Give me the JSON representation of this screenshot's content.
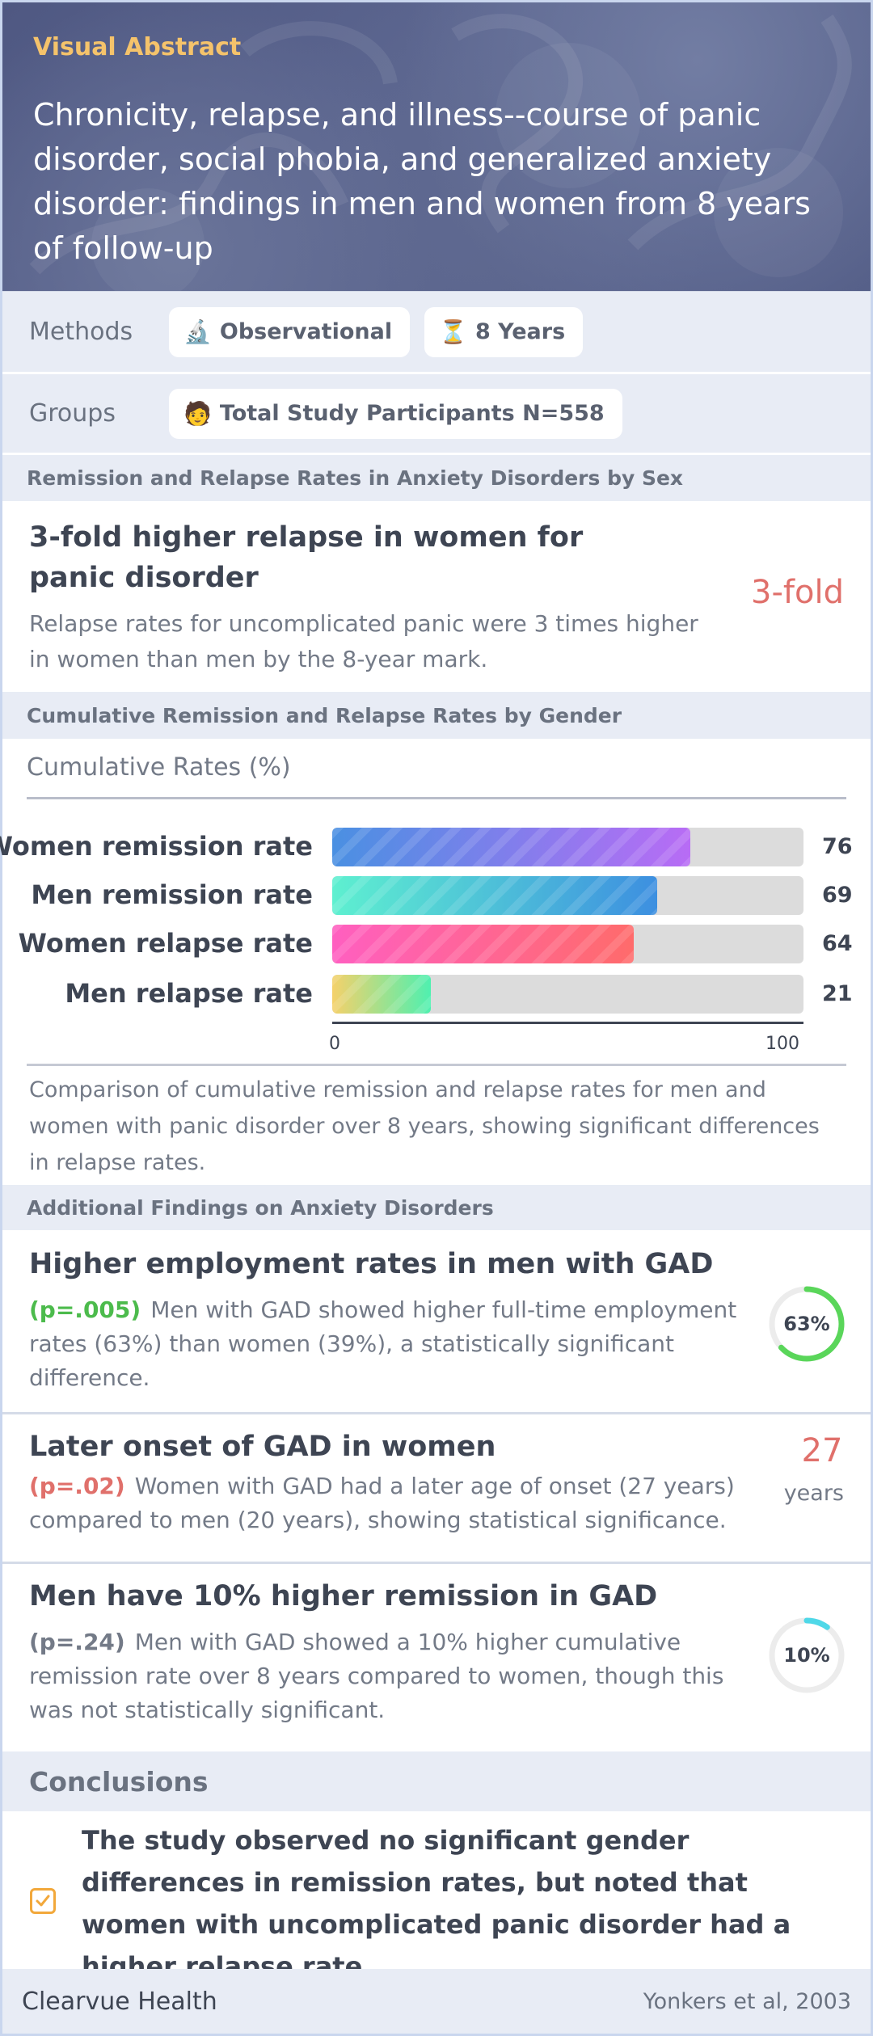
{
  "header": {
    "label": "Visual Abstract",
    "title": "Chronicity, relapse, and illness--course of panic disorder, social phobia, and generalized anxiety disorder: findings in men and women from 8 years of follow-up"
  },
  "methods": {
    "label": "Methods",
    "chips": [
      {
        "icon": "microscope-icon",
        "glyph": "🔬",
        "text": "Observational"
      },
      {
        "icon": "hourglass-icon",
        "glyph": "⏳",
        "text": "8 Years"
      }
    ]
  },
  "groups": {
    "label": "Groups",
    "chips": [
      {
        "icon": "person-icon",
        "glyph": "🧑",
        "text": "Total Study Participants N=558"
      }
    ]
  },
  "section1": {
    "title": "Remission and Relapse Rates in Anxiety Disorders by Sex",
    "finding": {
      "title": "3-fold higher relapse in women for panic disorder",
      "description": "Relapse rates for uncomplicated panic were 3 times higher in women than men by the 8-year mark.",
      "value": "3-fold"
    }
  },
  "section2": {
    "title": "Cumulative Remission and Relapse Rates by Gender",
    "caption": "Comparison of cumulative remission and relapse rates for men and women with panic disorder over 8 years, showing significant differences in relapse rates."
  },
  "chart_data": {
    "type": "bar",
    "orientation": "horizontal",
    "title": "Cumulative Rates (%)",
    "categories": [
      "Women remission rate",
      "Men remission rate",
      "Women relapse rate",
      "Men relapse rate"
    ],
    "values": [
      76,
      69,
      64,
      21
    ],
    "xlim": [
      0,
      100
    ],
    "tick_labels": [
      "0",
      "100"
    ],
    "colors": [
      [
        "#4a90e2",
        "#b86cf5"
      ],
      [
        "#5ef0d0",
        "#3d8fe0"
      ],
      [
        "#ff5fc0",
        "#ff6b6b"
      ],
      [
        "#f5d16a",
        "#4ff0b0"
      ]
    ]
  },
  "section3": {
    "title": "Additional Findings on Anxiety Disorders",
    "findings": [
      {
        "title": "Higher employment rates in men with GAD",
        "pvalue": "(p=.005)",
        "pcolor": "#4cbb4c",
        "description": "Men with GAD showed higher full-time employment rates (63%) than women (39%), a statistically significant difference.",
        "ring_label": "63%",
        "ring_fraction": 0.63,
        "ring_color": "#5ad65a"
      },
      {
        "title": "Later onset of GAD in women",
        "pvalue": "(p=.02)",
        "pcolor": "#e0706b",
        "description": "Women with GAD had a later age of onset (27 years) compared to men (20 years), showing statistical significance.",
        "value": "27",
        "unit": "years"
      },
      {
        "title": "Men have 10% higher remission in GAD",
        "pvalue": "(p=.24)",
        "pcolor": "#737a87",
        "description": "Men with GAD showed a 10% higher cumulative remission rate over 8 years compared to women, though this was not statistically significant.",
        "ring_label": "10%",
        "ring_fraction": 0.1,
        "ring_color": "#4fd8e8"
      }
    ]
  },
  "conclusions": {
    "title": "Conclusions",
    "text": "The study observed no significant gender differences in remission rates, but noted that women with uncomplicated panic disorder had a higher relapse rate."
  },
  "footer": {
    "brand": "Clearvue Health",
    "citation": "Yonkers et al, 2003"
  }
}
